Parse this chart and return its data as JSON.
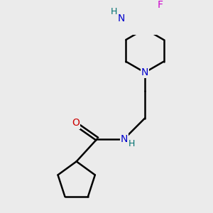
{
  "background_color": "#ebebeb",
  "atom_colors": {
    "N": "#0000cc",
    "O": "#cc0000",
    "F": "#cc00cc",
    "H_label": "#007070"
  },
  "bond_color": "#000000",
  "bond_width": 1.8,
  "font_size_atom": 10,
  "font_size_H": 9,
  "figsize": [
    3.0,
    3.0
  ],
  "dpi": 100
}
